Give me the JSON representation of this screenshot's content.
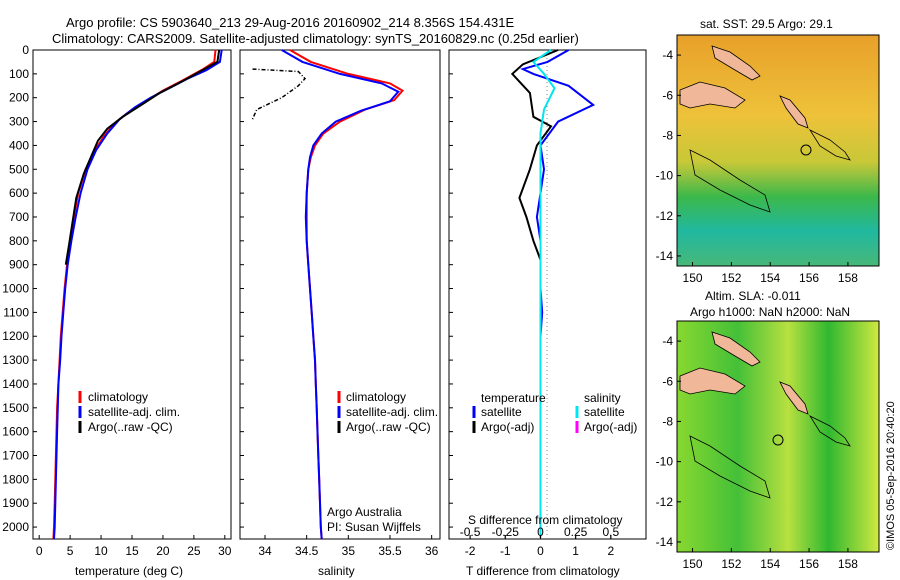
{
  "header": {
    "line1": "Argo profile: CS 5903640_213 29-Aug-2016 20160902_214 8.356S 154.431E",
    "line2": "Climatology: CARS2009. Satellite-adjusted climatology: synTS_20160829.nc (0.25d earlier)"
  },
  "colors": {
    "climatology": "#ff0000",
    "satellite": "#0000ff",
    "argo": "#000000",
    "sat_salinity": "#00e5ee",
    "argo_adj_salinity": "#ff00ff"
  },
  "depth_ticks": [
    0,
    100,
    200,
    300,
    400,
    500,
    600,
    700,
    800,
    900,
    1000,
    1100,
    1200,
    1300,
    1400,
    1500,
    1600,
    1700,
    1800,
    1900,
    2000
  ],
  "temp_panel": {
    "xlabel": "temperature (deg C)",
    "xticks": [
      0,
      5,
      10,
      15,
      20,
      25,
      30
    ],
    "legend": [
      "climatology",
      "satellite-adj. clim.",
      "Argo(..raw -QC)"
    ]
  },
  "sal_panel": {
    "xlabel": "salinity",
    "xticks": [
      34,
      34.5,
      35,
      35.5,
      36
    ],
    "legend": [
      "climatology",
      "satellite-adj. clim.",
      "Argo(..raw -QC)"
    ],
    "note1": "Argo Australia",
    "note2": "PI: Susan Wijffels"
  },
  "diff_panel": {
    "legend_temp_title": "temperature",
    "legend_sal_title": "salinity",
    "legend_temp": [
      "satellite",
      "Argo(-adj)"
    ],
    "legend_sal": [
      "satellite",
      "Argo(-adj)"
    ],
    "s_label": "S difference from climatology",
    "t_label": "T difference from climatology",
    "s_ticks": [
      "-0.5",
      "-0.25",
      "0",
      "0.25",
      "0.5"
    ],
    "t_ticks": [
      "-2",
      "-1",
      "0",
      "1",
      "2"
    ]
  },
  "map1": {
    "title": "sat. SST: 29.5  Argo: 29.1",
    "xticks": [
      150,
      152,
      154,
      156,
      158
    ],
    "yticks": [
      -4,
      -6,
      -8,
      -10,
      -12,
      -14
    ]
  },
  "map2": {
    "title1": "Altim. SLA: -0.011",
    "title2": "Argo h1000: NaN  h2000: NaN",
    "xticks": [
      150,
      152,
      154,
      156,
      158
    ],
    "yticks": [
      -4,
      -6,
      -8,
      -10,
      -12,
      -14
    ]
  },
  "side_text": "©IMOS 05-Sep-2016 20:40:20",
  "chart_data": [
    {
      "type": "line",
      "title": "",
      "xlabel": "temperature (deg C)",
      "ylabel": "",
      "xlim": [
        -1,
        31
      ],
      "ylim": [
        2050,
        0
      ],
      "series": [
        {
          "name": "climatology",
          "points": [
            [
              28.5,
              0
            ],
            [
              28.3,
              50
            ],
            [
              26.5,
              80
            ],
            [
              23,
              130
            ],
            [
              20,
              170
            ],
            [
              17.5,
              210
            ],
            [
              15,
              250
            ],
            [
              12.5,
              300
            ],
            [
              10.5,
              360
            ],
            [
              9,
              420
            ],
            [
              7.5,
              500
            ],
            [
              6.3,
              600
            ],
            [
              5.6,
              700
            ],
            [
              5,
              800
            ],
            [
              4.5,
              900
            ],
            [
              4.1,
              1000
            ],
            [
              3.8,
              1100
            ],
            [
              3.5,
              1200
            ],
            [
              3.3,
              1300
            ],
            [
              3.1,
              1400
            ],
            [
              2.9,
              1500
            ],
            [
              2.8,
              1600
            ],
            [
              2.7,
              1700
            ],
            [
              2.6,
              1800
            ],
            [
              2.5,
              1900
            ],
            [
              2.4,
              2000
            ],
            [
              2.3,
              2050
            ]
          ]
        },
        {
          "name": "satellite-adj. clim.",
          "points": [
            [
              29.5,
              0
            ],
            [
              29.2,
              50
            ],
            [
              27,
              85
            ],
            [
              24,
              120
            ],
            [
              21,
              160
            ],
            [
              18,
              200
            ],
            [
              15.5,
              240
            ],
            [
              13,
              290
            ],
            [
              11,
              350
            ],
            [
              9.2,
              420
            ],
            [
              7.8,
              500
            ],
            [
              6.7,
              600
            ],
            [
              5.9,
              700
            ],
            [
              5.2,
              800
            ],
            [
              4.6,
              900
            ],
            [
              4.2,
              1000
            ],
            [
              3.9,
              1100
            ],
            [
              3.6,
              1200
            ],
            [
              3.4,
              1300
            ],
            [
              3.1,
              1400
            ],
            [
              3,
              1500
            ],
            [
              2.9,
              1600
            ],
            [
              2.8,
              1700
            ],
            [
              2.7,
              1800
            ],
            [
              2.6,
              1900
            ],
            [
              2.5,
              2000
            ],
            [
              2.4,
              2050
            ]
          ]
        },
        {
          "name": "Argo(..raw -QC)",
          "points": [
            [
              29.1,
              0
            ],
            [
              28.8,
              50
            ],
            [
              26,
              90
            ],
            [
              22.5,
              140
            ],
            [
              19.5,
              180
            ],
            [
              16.5,
              230
            ],
            [
              13.5,
              280
            ],
            [
              11,
              330
            ],
            [
              9.5,
              380
            ],
            [
              8.5,
              440
            ],
            [
              7.2,
              520
            ],
            [
              6,
              620
            ],
            [
              5.4,
              720
            ],
            [
              4.8,
              820
            ],
            [
              4.3,
              900
            ]
          ]
        }
      ]
    },
    {
      "type": "line",
      "title": "",
      "xlabel": "salinity",
      "ylabel": "",
      "xlim": [
        33.7,
        36.1
      ],
      "ylim": [
        2050,
        0
      ],
      "series": [
        {
          "name": "climatology",
          "points": [
            [
              34.3,
              0
            ],
            [
              34.55,
              50
            ],
            [
              35,
              100
            ],
            [
              35.5,
              140
            ],
            [
              35.65,
              170
            ],
            [
              35.55,
              210
            ],
            [
              35.2,
              250
            ],
            [
              34.9,
              300
            ],
            [
              34.7,
              350
            ],
            [
              34.6,
              400
            ],
            [
              34.55,
              450
            ],
            [
              34.52,
              500
            ],
            [
              34.5,
              600
            ],
            [
              34.5,
              700
            ],
            [
              34.5,
              800
            ],
            [
              34.52,
              900
            ],
            [
              34.54,
              1000
            ],
            [
              34.56,
              1100
            ],
            [
              34.58,
              1200
            ],
            [
              34.6,
              1300
            ],
            [
              34.61,
              1400
            ],
            [
              34.62,
              1500
            ],
            [
              34.63,
              1600
            ],
            [
              34.64,
              1700
            ],
            [
              34.65,
              1800
            ],
            [
              34.66,
              1900
            ],
            [
              34.67,
              2000
            ],
            [
              34.68,
              2050
            ]
          ]
        },
        {
          "name": "satellite-adj. clim.",
          "points": [
            [
              34.2,
              0
            ],
            [
              34.45,
              50
            ],
            [
              34.9,
              100
            ],
            [
              35.4,
              140
            ],
            [
              35.6,
              175
            ],
            [
              35.5,
              215
            ],
            [
              35.15,
              255
            ],
            [
              34.85,
              300
            ],
            [
              34.68,
              350
            ],
            [
              34.58,
              400
            ],
            [
              34.54,
              450
            ],
            [
              34.52,
              500
            ],
            [
              34.5,
              600
            ],
            [
              34.49,
              700
            ],
            [
              34.5,
              800
            ],
            [
              34.52,
              900
            ],
            [
              34.54,
              1000
            ],
            [
              34.56,
              1100
            ],
            [
              34.58,
              1200
            ],
            [
              34.6,
              1300
            ],
            [
              34.61,
              1400
            ],
            [
              34.62,
              1500
            ],
            [
              34.63,
              1600
            ],
            [
              34.64,
              1700
            ],
            [
              34.65,
              1800
            ],
            [
              34.66,
              1900
            ],
            [
              34.67,
              2000
            ],
            [
              34.68,
              2050
            ]
          ]
        },
        {
          "name": "Argo(..raw -QC)",
          "points": [
            [
              33.85,
              80
            ],
            [
              34.4,
              90
            ],
            [
              34.48,
              120
            ],
            [
              34.4,
              150
            ],
            [
              34.2,
              200
            ],
            [
              33.9,
              250
            ],
            [
              33.85,
              290
            ]
          ]
        }
      ]
    },
    {
      "type": "line",
      "title": "",
      "xlabel": "T difference from climatology",
      "ylabel": "",
      "xlim": [
        -2.6,
        3
      ],
      "ylim": [
        2050,
        0
      ],
      "series": [
        {
          "name": "temperature satellite",
          "points": [
            [
              0.8,
              0
            ],
            [
              0.2,
              50
            ],
            [
              -0.5,
              80
            ],
            [
              -0.2,
              100
            ],
            [
              0.8,
              150
            ],
            [
              1.5,
              230
            ],
            [
              0.5,
              300
            ],
            [
              0,
              400
            ],
            [
              0.1,
              500
            ],
            [
              0,
              600
            ],
            [
              -0.1,
              700
            ],
            [
              0,
              800
            ],
            [
              0,
              900
            ],
            [
              0,
              1000
            ],
            [
              0.05,
              1100
            ],
            [
              0,
              1200
            ],
            [
              0,
              1400
            ],
            [
              0,
              1600
            ],
            [
              0,
              1800
            ],
            [
              0,
              2000
            ],
            [
              0,
              2050
            ]
          ]
        },
        {
          "name": "temperature Argo(-adj)",
          "points": [
            [
              0.5,
              0
            ],
            [
              -0.5,
              60
            ],
            [
              -0.8,
              100
            ],
            [
              -0.3,
              180
            ],
            [
              -0.2,
              280
            ],
            [
              0.3,
              320
            ],
            [
              -0.1,
              400
            ],
            [
              -0.3,
              500
            ],
            [
              -0.6,
              620
            ],
            [
              -0.4,
              700
            ],
            [
              -0.2,
              800
            ],
            [
              0,
              880
            ]
          ]
        },
        {
          "name": "salinity satellite",
          "points": [
            [
              0.3,
              0
            ],
            [
              -0.2,
              50
            ],
            [
              0.1,
              100
            ],
            [
              0.4,
              160
            ],
            [
              0.1,
              250
            ],
            [
              0,
              350
            ],
            [
              0,
              500
            ],
            [
              0,
              700
            ],
            [
              0,
              1000
            ],
            [
              0,
              1500
            ],
            [
              0,
              2050
            ]
          ]
        }
      ]
    }
  ]
}
